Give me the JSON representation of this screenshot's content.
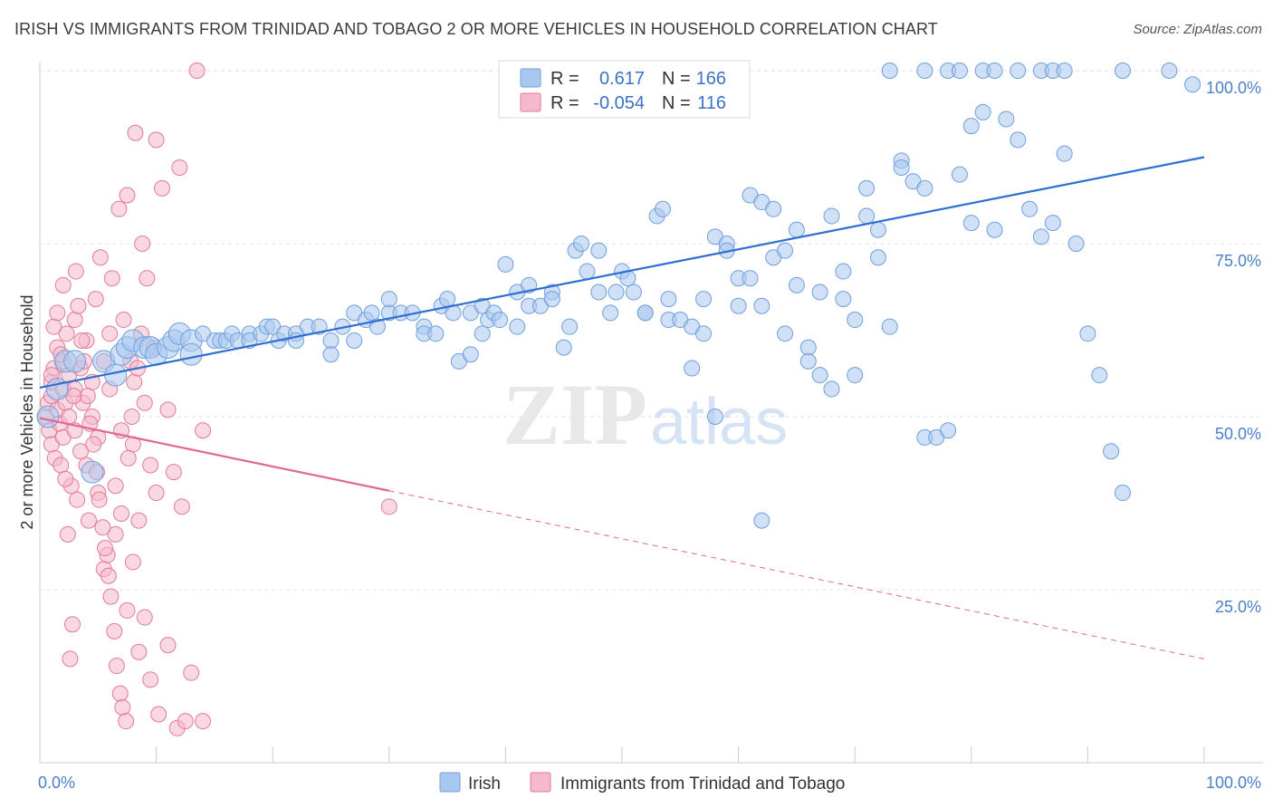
{
  "header": {
    "title": "IRISH VS IMMIGRANTS FROM TRINIDAD AND TOBAGO 2 OR MORE VEHICLES IN HOUSEHOLD CORRELATION CHART",
    "source": "Source: ZipAtlas.com"
  },
  "watermark": {
    "zip": "ZIP",
    "atlas": "atlas"
  },
  "stats": [
    {
      "r_label": "R =",
      "r_value": "0.617",
      "n_label": "N =",
      "n_value": "166",
      "color": "#a9c8f0"
    },
    {
      "r_label": "R =",
      "r_value": "-0.054",
      "n_label": "N =",
      "n_value": "116",
      "color": "#f6b8cb"
    }
  ],
  "chart_data": {
    "type": "scatter",
    "title": "IRISH VS IMMIGRANTS FROM TRINIDAD AND TOBAGO 2 OR MORE VEHICLES IN HOUSEHOLD CORRELATION CHART",
    "xlabel": "",
    "ylabel": "2 or more Vehicles in Household",
    "xlim": [
      0,
      100
    ],
    "ylim": [
      0,
      100
    ],
    "x_tick_labels": [
      "0.0%",
      "100.0%"
    ],
    "y_tick_labels": [
      "25.0%",
      "50.0%",
      "75.0%",
      "100.0%"
    ],
    "y_ticks": [
      25,
      50,
      75,
      100
    ],
    "grid": true,
    "legend_position": "bottom-center",
    "series": [
      {
        "name": "Irish",
        "color": "#a9c8f0",
        "stroke": "#6f9fdc",
        "trend": {
          "x0": 0,
          "y0": 54.2,
          "x1": 100,
          "y1": 87.5,
          "color": "#2f6fd1"
        },
        "points": [
          [
            0.7,
            50
          ],
          [
            1.5,
            54
          ],
          [
            2.2,
            58
          ],
          [
            3,
            58
          ],
          [
            4.5,
            42
          ],
          [
            5.5,
            58
          ],
          [
            6.5,
            56
          ],
          [
            7,
            59
          ],
          [
            7.5,
            60
          ],
          [
            8,
            61
          ],
          [
            9,
            60
          ],
          [
            9.5,
            60
          ],
          [
            10,
            59
          ],
          [
            11,
            60
          ],
          [
            11.5,
            61
          ],
          [
            12,
            62
          ],
          [
            13,
            61
          ],
          [
            13,
            59
          ],
          [
            14,
            62
          ],
          [
            15,
            61
          ],
          [
            15.5,
            61
          ],
          [
            16,
            61
          ],
          [
            16.5,
            62
          ],
          [
            17,
            61
          ],
          [
            18,
            62
          ],
          [
            18,
            61
          ],
          [
            19,
            62
          ],
          [
            19.5,
            63
          ],
          [
            20,
            63
          ],
          [
            20.5,
            61
          ],
          [
            21,
            62
          ],
          [
            22,
            62
          ],
          [
            22,
            61
          ],
          [
            23,
            63
          ],
          [
            24,
            63
          ],
          [
            25,
            61
          ],
          [
            25,
            59
          ],
          [
            26,
            63
          ],
          [
            27,
            65
          ],
          [
            27,
            61
          ],
          [
            28,
            64
          ],
          [
            28.5,
            65
          ],
          [
            29,
            63
          ],
          [
            30,
            65
          ],
          [
            30,
            67
          ],
          [
            31,
            65
          ],
          [
            32,
            65
          ],
          [
            33,
            63
          ],
          [
            33,
            62
          ],
          [
            34,
            62
          ],
          [
            34.5,
            66
          ],
          [
            35,
            67
          ],
          [
            35.5,
            65
          ],
          [
            36,
            58
          ],
          [
            37,
            59
          ],
          [
            37,
            65
          ],
          [
            38,
            66
          ],
          [
            38,
            62
          ],
          [
            38.5,
            64
          ],
          [
            39,
            65
          ],
          [
            39.5,
            64
          ],
          [
            40,
            72
          ],
          [
            41,
            68
          ],
          [
            41,
            63
          ],
          [
            42,
            69
          ],
          [
            42,
            66
          ],
          [
            43,
            66
          ],
          [
            44,
            68
          ],
          [
            44,
            67
          ],
          [
            45,
            60
          ],
          [
            45.5,
            63
          ],
          [
            46,
            74
          ],
          [
            46.5,
            75
          ],
          [
            47,
            71
          ],
          [
            48,
            68
          ],
          [
            48,
            74
          ],
          [
            49,
            65
          ],
          [
            49.5,
            68
          ],
          [
            50,
            71
          ],
          [
            50.5,
            70
          ],
          [
            51,
            68
          ],
          [
            52,
            65
          ],
          [
            52,
            65
          ],
          [
            53,
            79
          ],
          [
            53.5,
            80
          ],
          [
            54,
            67
          ],
          [
            54,
            64
          ],
          [
            55,
            64
          ],
          [
            56,
            63
          ],
          [
            56,
            57
          ],
          [
            57,
            62
          ],
          [
            57,
            67
          ],
          [
            58,
            76
          ],
          [
            59,
            75
          ],
          [
            59,
            74
          ],
          [
            60,
            70
          ],
          [
            60,
            66
          ],
          [
            61,
            70
          ],
          [
            61,
            82
          ],
          [
            62,
            66
          ],
          [
            62,
            81
          ],
          [
            63,
            80
          ],
          [
            63,
            73
          ],
          [
            64,
            62
          ],
          [
            64,
            74
          ],
          [
            65,
            77
          ],
          [
            65,
            69
          ],
          [
            66,
            60
          ],
          [
            66,
            58
          ],
          [
            67,
            68
          ],
          [
            67,
            56
          ],
          [
            68,
            79
          ],
          [
            68,
            54
          ],
          [
            69,
            71
          ],
          [
            69,
            67
          ],
          [
            70,
            64
          ],
          [
            70,
            56
          ],
          [
            71,
            83
          ],
          [
            71,
            79
          ],
          [
            72,
            73
          ],
          [
            72,
            77
          ],
          [
            73,
            63
          ],
          [
            74,
            87
          ],
          [
            74,
            86
          ],
          [
            75,
            84
          ],
          [
            76,
            47
          ],
          [
            76,
            83
          ],
          [
            77,
            47
          ],
          [
            78,
            48
          ],
          [
            79,
            85
          ],
          [
            80,
            92
          ],
          [
            80,
            78
          ],
          [
            81,
            94
          ],
          [
            82,
            77
          ],
          [
            83,
            93
          ],
          [
            84,
            90
          ],
          [
            85,
            80
          ],
          [
            86,
            76
          ],
          [
            87,
            78
          ],
          [
            88,
            88
          ],
          [
            89,
            75
          ],
          [
            90,
            62
          ],
          [
            91,
            56
          ],
          [
            92,
            45
          ],
          [
            93,
            39
          ],
          [
            73,
            100
          ],
          [
            76,
            100
          ],
          [
            78,
            100
          ],
          [
            79,
            100
          ],
          [
            81,
            100
          ],
          [
            82,
            100
          ],
          [
            84,
            100
          ],
          [
            86,
            100
          ],
          [
            87,
            100
          ],
          [
            88,
            100
          ],
          [
            93,
            100
          ],
          [
            97,
            100
          ],
          [
            99,
            98
          ],
          [
            58,
            50
          ],
          [
            62,
            35
          ]
        ]
      },
      {
        "name": "Immigrants from Trinidad and Tobago",
        "color": "#f6b8cb",
        "stroke": "#e27a9b",
        "trend": {
          "x0": 0,
          "y0": 49.8,
          "x1": 30,
          "y1": 39.3,
          "dash_to_x": 100,
          "dash_to_y": 15.0,
          "color": "#e06891"
        },
        "points": [
          [
            0.5,
            50
          ],
          [
            0.7,
            52
          ],
          [
            0.8,
            48
          ],
          [
            1,
            53
          ],
          [
            1,
            55
          ],
          [
            1,
            46
          ],
          [
            1.2,
            57
          ],
          [
            1.3,
            44
          ],
          [
            1.5,
            51
          ],
          [
            1.5,
            60
          ],
          [
            1.7,
            49
          ],
          [
            1.8,
            43
          ],
          [
            2,
            54
          ],
          [
            2,
            58
          ],
          [
            2,
            47
          ],
          [
            2.2,
            52
          ],
          [
            2.3,
            62
          ],
          [
            2.5,
            56
          ],
          [
            2.5,
            50
          ],
          [
            2.7,
            40
          ],
          [
            3,
            54
          ],
          [
            3,
            48
          ],
          [
            3,
            64
          ],
          [
            3.2,
            38
          ],
          [
            3.5,
            57
          ],
          [
            3.5,
            45
          ],
          [
            3.7,
            52
          ],
          [
            4,
            61
          ],
          [
            4,
            43
          ],
          [
            4.2,
            35
          ],
          [
            4.5,
            55
          ],
          [
            4.5,
            50
          ],
          [
            4.8,
            67
          ],
          [
            5,
            47
          ],
          [
            5,
            39
          ],
          [
            5.2,
            73
          ],
          [
            5.5,
            58
          ],
          [
            5.5,
            28
          ],
          [
            5.8,
            30
          ],
          [
            6,
            54
          ],
          [
            6,
            62
          ],
          [
            6.2,
            70
          ],
          [
            6.5,
            40
          ],
          [
            6.5,
            33
          ],
          [
            6.8,
            80
          ],
          [
            7,
            48
          ],
          [
            7,
            36
          ],
          [
            7.2,
            64
          ],
          [
            7.5,
            82
          ],
          [
            7.5,
            22
          ],
          [
            7.8,
            58
          ],
          [
            8,
            46
          ],
          [
            8,
            29
          ],
          [
            8.2,
            91
          ],
          [
            8.5,
            35
          ],
          [
            8.5,
            16
          ],
          [
            8.8,
            75
          ],
          [
            9,
            52
          ],
          [
            9,
            21
          ],
          [
            9.2,
            70
          ],
          [
            9.5,
            43
          ],
          [
            9.5,
            12
          ],
          [
            9.8,
            60
          ],
          [
            10,
            90
          ],
          [
            10,
            39
          ],
          [
            10.2,
            7
          ],
          [
            10.5,
            83
          ],
          [
            11,
            51
          ],
          [
            11,
            17
          ],
          [
            11.5,
            42
          ],
          [
            11.8,
            5
          ],
          [
            12,
            86
          ],
          [
            12.2,
            37
          ],
          [
            12.5,
            6
          ],
          [
            13,
            13
          ],
          [
            13.5,
            100
          ],
          [
            14,
            6
          ],
          [
            14,
            48
          ],
          [
            1,
            56
          ],
          [
            1.2,
            63
          ],
          [
            1.5,
            65
          ],
          [
            2,
            69
          ],
          [
            2.2,
            41
          ],
          [
            2.4,
            33
          ],
          [
            2.6,
            15
          ],
          [
            2.8,
            20
          ],
          [
            3.1,
            71
          ],
          [
            3.3,
            66
          ],
          [
            3.6,
            61
          ],
          [
            3.8,
            58
          ],
          [
            4.1,
            53
          ],
          [
            4.3,
            49
          ],
          [
            4.6,
            46
          ],
          [
            4.9,
            42
          ],
          [
            5.1,
            38
          ],
          [
            5.4,
            34
          ],
          [
            5.6,
            31
          ],
          [
            5.9,
            27
          ],
          [
            6.1,
            24
          ],
          [
            6.4,
            19
          ],
          [
            6.6,
            14
          ],
          [
            6.9,
            10
          ],
          [
            7.1,
            8
          ],
          [
            7.4,
            6
          ],
          [
            7.6,
            44
          ],
          [
            7.9,
            50
          ],
          [
            8.1,
            55
          ],
          [
            8.4,
            57
          ],
          [
            8.7,
            62
          ],
          [
            30,
            37
          ],
          [
            1.8,
            59
          ],
          [
            2.9,
            53
          ]
        ]
      }
    ]
  },
  "legend": {
    "items": [
      {
        "label": "Irish",
        "color": "#a9c8f0"
      },
      {
        "label": "Immigrants from Trinidad and Tobago",
        "color": "#f6b8cb"
      }
    ]
  }
}
